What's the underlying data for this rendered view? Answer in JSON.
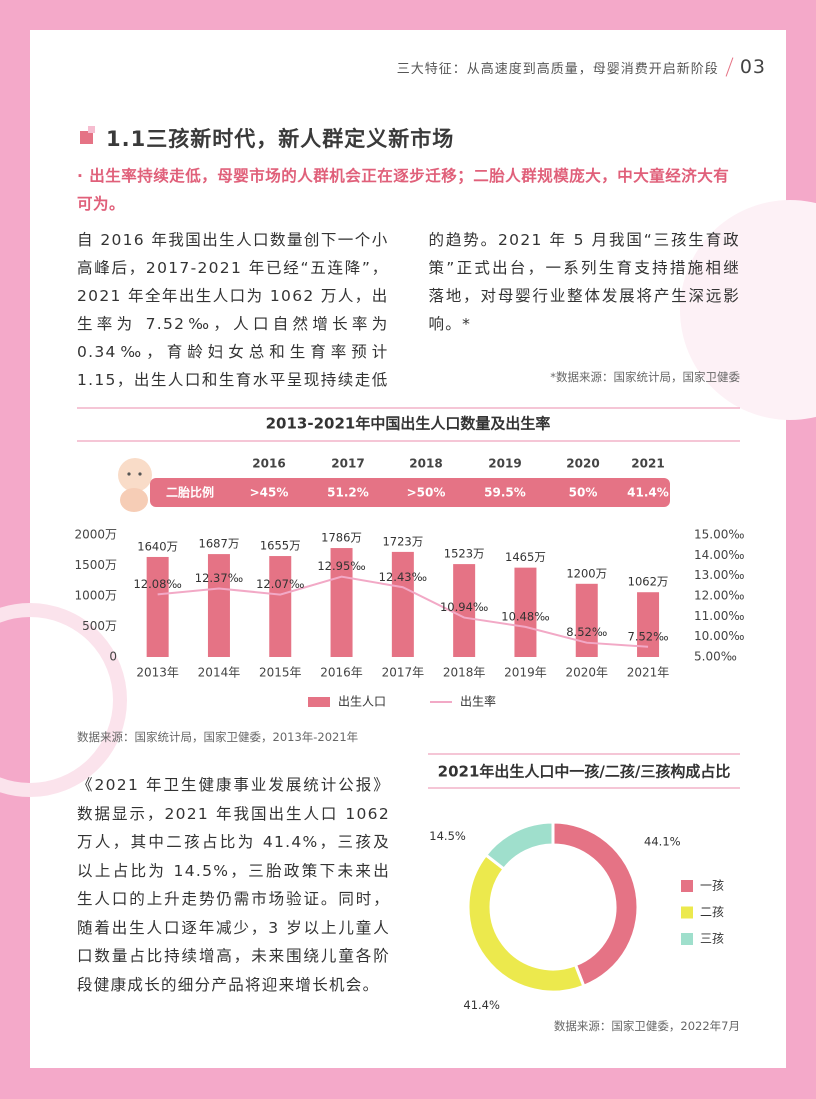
{
  "header": {
    "title": "三大特征：从高速度到高质量，母婴消费开启新阶段",
    "page": "03"
  },
  "section": {
    "title": "1.1三孩新时代，新人群定义新市场",
    "subtitle": "· 出生率持续走低，母婴市场的人群机会正在逐步迁移；二胎人群规模庞大，中大童经济大有可为。"
  },
  "intro": "自 2016 年我国出生人口数量创下一个小高峰后，2017-2021 年已经“五连降”，2021 年全年出生人口为 1062 万人，出生率为 7.52‰，人口自然增长率为 0.34‰，育龄妇女总和生育率预计 1.15，出生人口和生育水平呈现持续走低的趋势。2021 年 5 月我国“三孩生育政策”正式出台，一系列生育支持措施相继落地，对母婴行业整体发展将产生深远影响。*",
  "intro_source": "*数据来源：国家统计局，国家卫健委",
  "second_child_ratio": {
    "label": "二胎比例",
    "years": [
      "2016",
      "2017",
      "2018",
      "2019",
      "2020",
      "2021"
    ],
    "values": [
      ">45%",
      "51.2%",
      ">50%",
      "59.5%",
      "50%",
      "41.4%"
    ]
  },
  "chart_data": [
    {
      "type": "bar",
      "title": "2013-2021年中国出生人口数量及出生率",
      "categories": [
        "2013年",
        "2014年",
        "2015年",
        "2016年",
        "2017年",
        "2018年",
        "2019年",
        "2020年",
        "2021年"
      ],
      "series": [
        {
          "name": "出生人口",
          "type": "bar",
          "color": "#e57385",
          "values": [
            1640,
            1687,
            1655,
            1786,
            1723,
            1523,
            1465,
            1200,
            1062
          ],
          "value_labels": [
            "1640万",
            "1687万",
            "1655万",
            "1786万",
            "1723万",
            "1523万",
            "1465万",
            "1200万",
            "1062万"
          ]
        },
        {
          "name": "出生率",
          "type": "line",
          "axis": "y2",
          "color": "#f2a9c6",
          "values": [
            12.08,
            12.37,
            12.07,
            12.95,
            12.43,
            10.94,
            10.48,
            8.52,
            7.52
          ],
          "value_labels": [
            "12.08‰",
            "12.37‰",
            "12.07‰",
            "12.95‰",
            "12.43‰",
            "10.94‰",
            "10.48‰",
            "8.52‰",
            "7.52‰"
          ]
        }
      ],
      "ylim": [
        0,
        2000
      ],
      "yticks": [
        0,
        {
          "value": 500,
          "label": "500万"
        },
        {
          "value": 1000,
          "label": "1000万"
        },
        {
          "value": 1500,
          "label": "1500万"
        },
        {
          "value": 2000,
          "label": "2000万"
        }
      ],
      "y2lim": [
        5,
        15
      ],
      "y2ticks": [
        {
          "value": 5,
          "label": "5.00‰"
        },
        {
          "value": 10,
          "label": "10.00‰"
        },
        {
          "value": 11,
          "label": "11.00‰"
        },
        {
          "value": 12,
          "label": "12.00‰"
        },
        {
          "value": 13,
          "label": "13.00‰"
        },
        {
          "value": 14,
          "label": "14.00‰"
        },
        {
          "value": 15,
          "label": "15.00‰"
        }
      ],
      "source": "数据来源：国家统计局，国家卫健委，2013年-2021年"
    },
    {
      "type": "pie",
      "donut": true,
      "title": "2021年出生人口中一孩/二孩/三孩构成占比",
      "categories": [
        "一孩",
        "二孩",
        "三孩"
      ],
      "values": [
        44.1,
        41.4,
        14.5
      ],
      "value_labels": [
        "44.1%",
        "41.4%",
        "14.5%"
      ],
      "colors": [
        "#e57385",
        "#ece94d",
        "#9fdfcc"
      ],
      "source": "数据来源：国家卫健委，2022年7月"
    }
  ],
  "body": "《2021 年卫生健康事业发展统计公报》数据显示，2021 年我国出生人口 1062 万人，其中二孩占比为 41.4%，三孩及以上占比为 14.5%，三胎政策下未来出生人口的上升走势仍需市场验证。同时，随着出生人口逐年减少，3 岁以上儿童人口数量占比持续增高，未来围绕儿童各阶段健康成长的细分产品将迎来增长机会。"
}
